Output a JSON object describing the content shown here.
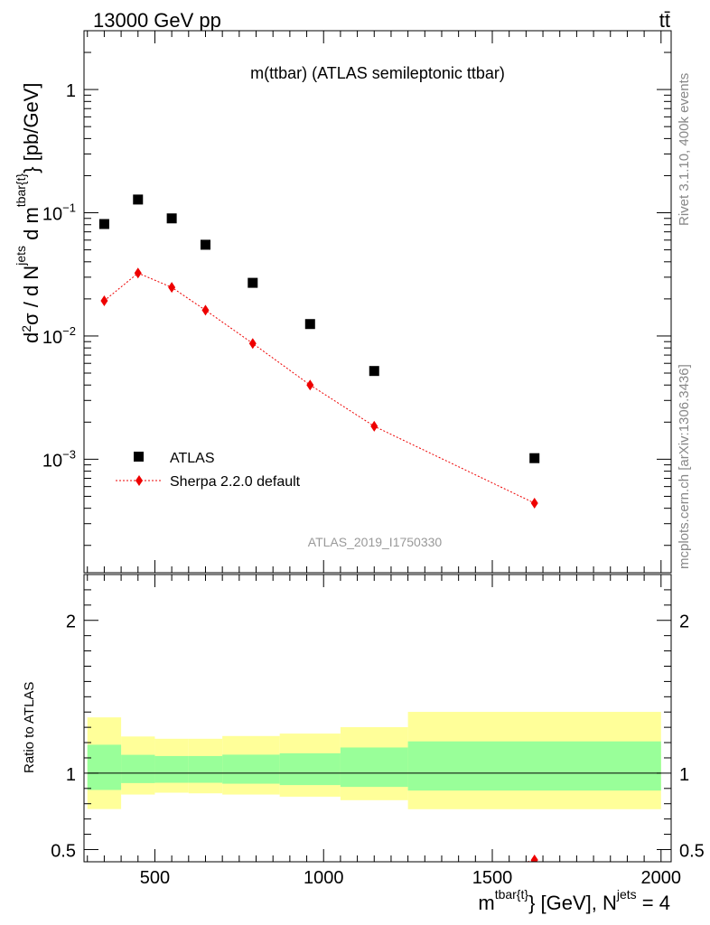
{
  "header": {
    "energy_label": "13000 GeV pp",
    "process_label": "tt̄",
    "side_top": "Rivet 3.1.10,  400k events",
    "side_bottom": "mcplots.cern.ch [arXiv:1306.3436]"
  },
  "chart_data": [
    {
      "type": "scatter",
      "title": "m(ttbar) (ATLAS semileptonic ttbar)",
      "watermark": "ATLAS_2019_I1750330",
      "ylabel": "d²σ / d N^jets d m^tbar{t}} [pb/GeV]",
      "yscale": "log",
      "ylim": [
        0.00012,
        3
      ],
      "xlim": [
        290,
        2030
      ],
      "ytick_labels": [
        "10^-3",
        "10^-2",
        "10^-1",
        "1"
      ],
      "legend": {
        "placement": "lower-left",
        "entries": [
          "ATLAS",
          "Sherpa 2.2.0 default"
        ]
      },
      "series": [
        {
          "name": "ATLAS",
          "color": "#000000",
          "marker": "square",
          "x": [
            350,
            450,
            550,
            650,
            790,
            960,
            1150,
            1625
          ],
          "y": [
            0.081,
            0.128,
            0.09,
            0.055,
            0.027,
            0.0125,
            0.0052,
            0.00102
          ]
        },
        {
          "name": "Sherpa 2.2.0 default",
          "color": "#ee0000",
          "marker": "diamond",
          "line": "dotted",
          "x": [
            350,
            450,
            550,
            650,
            790,
            960,
            1150,
            1625
          ],
          "y": [
            0.0193,
            0.0324,
            0.0248,
            0.0162,
            0.0087,
            0.004,
            0.00185,
            0.00044
          ]
        }
      ]
    },
    {
      "type": "area",
      "ylabel": "Ratio to ATLAS",
      "xlabel": "m^tbar{t}} [GeV], N^jets = 4",
      "ylim": [
        0.42,
        2.3
      ],
      "xlim": [
        290,
        2030
      ],
      "x_ticks": [
        500,
        1000,
        1500,
        2000
      ],
      "y_ticks": [
        0.5,
        1,
        2
      ],
      "bands": [
        {
          "x0": 300,
          "x1": 400,
          "yellow": [
            0.765,
            1.365
          ],
          "green": [
            0.89,
            1.186
          ]
        },
        {
          "x0": 400,
          "x1": 500,
          "yellow": [
            0.86,
            1.24
          ],
          "green": [
            0.935,
            1.12
          ]
        },
        {
          "x0": 500,
          "x1": 600,
          "yellow": [
            0.872,
            1.225
          ],
          "green": [
            0.937,
            1.112
          ]
        },
        {
          "x0": 600,
          "x1": 700,
          "yellow": [
            0.868,
            1.225
          ],
          "green": [
            0.937,
            1.112
          ]
        },
        {
          "x0": 700,
          "x1": 870,
          "yellow": [
            0.86,
            1.243
          ],
          "green": [
            0.931,
            1.121
          ]
        },
        {
          "x0": 870,
          "x1": 1050,
          "yellow": [
            0.846,
            1.259
          ],
          "green": [
            0.922,
            1.13
          ]
        },
        {
          "x0": 1050,
          "x1": 1250,
          "yellow": [
            0.823,
            1.301
          ],
          "green": [
            0.91,
            1.168
          ]
        },
        {
          "x0": 1250,
          "x1": 2000,
          "yellow": [
            0.764,
            1.401
          ],
          "green": [
            0.886,
            1.208
          ]
        }
      ],
      "reference_line": 1,
      "series": [
        {
          "name": "Sherpa 2.2.0 default",
          "color": "#ee0000",
          "x": [
            1480,
            1625
          ],
          "y": [
            0.35,
            0.432
          ]
        }
      ]
    }
  ]
}
